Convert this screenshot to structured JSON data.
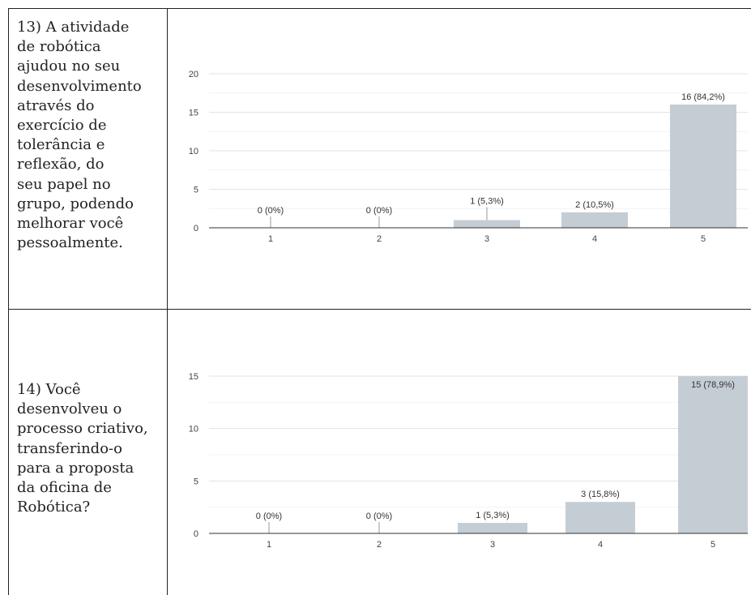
{
  "questions": [
    {
      "lines": [
        "13) A atividade",
        "de robótica",
        "ajudou no seu",
        "desenvolvimento",
        "através do",
        "exercício de",
        "tolerância e",
        "reflexão, do",
        "seu papel no",
        "grupo, podendo",
        "melhorar você",
        "pessoalmente."
      ]
    },
    {
      "lines": [
        "14) Você",
        "desenvolveu o",
        "processo criativo,",
        "transferindo-o",
        "para a proposta",
        "da oficina de",
        "Robótica?"
      ]
    }
  ],
  "chart_data": [
    {
      "type": "bar",
      "categories": [
        "1",
        "2",
        "3",
        "4",
        "5"
      ],
      "values": [
        0,
        0,
        1,
        2,
        16
      ],
      "data_labels": [
        "0 (0%)",
        "0 (0%)",
        "1 (5,3%)",
        "2 (10,5%)",
        "16 (84,2%)"
      ],
      "yticks": [
        0,
        5,
        10,
        15,
        20
      ],
      "ylim": [
        0,
        20
      ],
      "grid": true,
      "bar_color": "#c5cdd4"
    },
    {
      "type": "bar",
      "categories": [
        "1",
        "2",
        "3",
        "4",
        "5"
      ],
      "values": [
        0,
        0,
        1,
        3,
        15
      ],
      "data_labels": [
        "0 (0%)",
        "0 (0%)",
        "1 (5,3%)",
        "3 (15,8%)",
        "15 (78,9%)"
      ],
      "yticks": [
        0,
        5,
        10,
        15
      ],
      "ylim": [
        0,
        15
      ],
      "grid": true,
      "bar_color": "#c5cdd4"
    }
  ]
}
